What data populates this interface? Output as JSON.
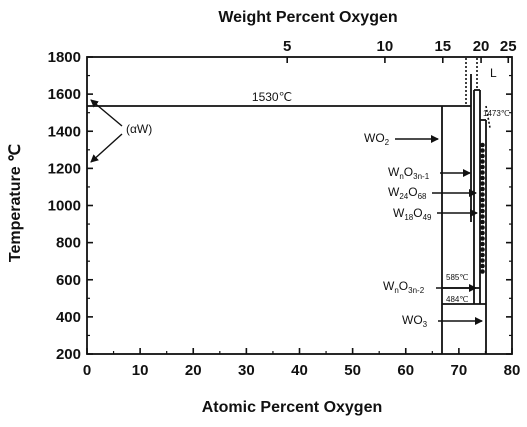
{
  "chart_data": {
    "type": "phase-diagram",
    "title": "",
    "top_axis": {
      "label": "Weight Percent Oxygen",
      "ticks": [
        "5",
        "10",
        "15",
        "20",
        "25"
      ]
    },
    "x_axis": {
      "label": "Atomic Percent Oxygen",
      "range": [
        0,
        80
      ],
      "ticks": [
        "0",
        "10",
        "20",
        "30",
        "40",
        "50",
        "60",
        "70",
        "80"
      ]
    },
    "y_axis": {
      "label": "Temperature ℃",
      "range": [
        200,
        1800
      ],
      "ticks": [
        "200",
        "400",
        "600",
        "800",
        "1000",
        "1200",
        "1400",
        "1600",
        "1800"
      ]
    },
    "isotherms": [
      {
        "label": "1530℃",
        "temp_c": 1530,
        "x_from": 0,
        "x_to": 66.7
      },
      {
        "label": "1473℃",
        "temp_c": 1473
      },
      {
        "label": "585℃",
        "temp_c": 585
      },
      {
        "label": "484℃",
        "temp_c": 484
      }
    ],
    "phases": {
      "alpha_w": "(αW)",
      "liquid": "L",
      "wo2": {
        "base": "WO",
        "sub": "2"
      },
      "wno3n1": {
        "base1": "W",
        "sub1": "n",
        "base2": "O",
        "sub2": "3n-1"
      },
      "w24o68": {
        "base1": "W",
        "sub1": "24",
        "base2": "O",
        "sub2": "68"
      },
      "w18o49": {
        "base1": "W",
        "sub1": "18",
        "base2": "O",
        "sub2": "49"
      },
      "wno3n2": {
        "base1": "W",
        "sub1": "n",
        "base2": "O",
        "sub2": "3n-2"
      },
      "wo3": {
        "base": "WO",
        "sub": "3"
      }
    }
  }
}
